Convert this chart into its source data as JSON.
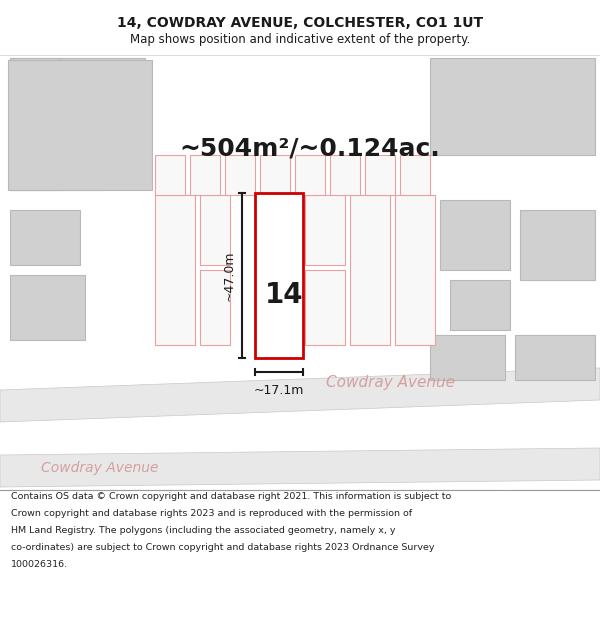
{
  "title_line1": "14, COWDRAY AVENUE, COLCHESTER, CO1 1UT",
  "title_line2": "Map shows position and indicative extent of the property.",
  "area_text": "~504m²/~0.124ac.",
  "number_label": "14",
  "dim_vertical": "~47.0m",
  "dim_horizontal": "~17.1m",
  "street_name_main": "Cowdray Avenue",
  "street_name_lower": "Cowdray Avenue",
  "footer_lines": [
    "Contains OS data © Crown copyright and database right 2021. This information is subject to",
    "Crown copyright and database rights 2023 and is reproduced with the permission of",
    "HM Land Registry. The polygons (including the associated geometry, namely x, y",
    "co-ordinates) are subject to Crown copyright and database rights 2023 Ordnance Survey",
    "100026316."
  ],
  "bg_color": "#ffffff",
  "map_bg": "#f0f0f0",
  "building_gray_fill": "#d0d0d0",
  "building_gray_edge": "#b8b8b8",
  "building_red_fill": "#f8f8f8",
  "building_red_edge": "#e8a0a0",
  "road_fill": "#e8e8e8",
  "road_edge": "#c8c8c8",
  "plot_outline_color": "#cc0000",
  "plot_fill": "#ffffff",
  "dim_line_color": "#1a1a1a",
  "text_dark": "#1a1a1a",
  "street_text_color": "#d4a0a0",
  "footer_color": "#222222",
  "header_sep_color": "#cccccc",
  "footer_sep_color": "#999999"
}
